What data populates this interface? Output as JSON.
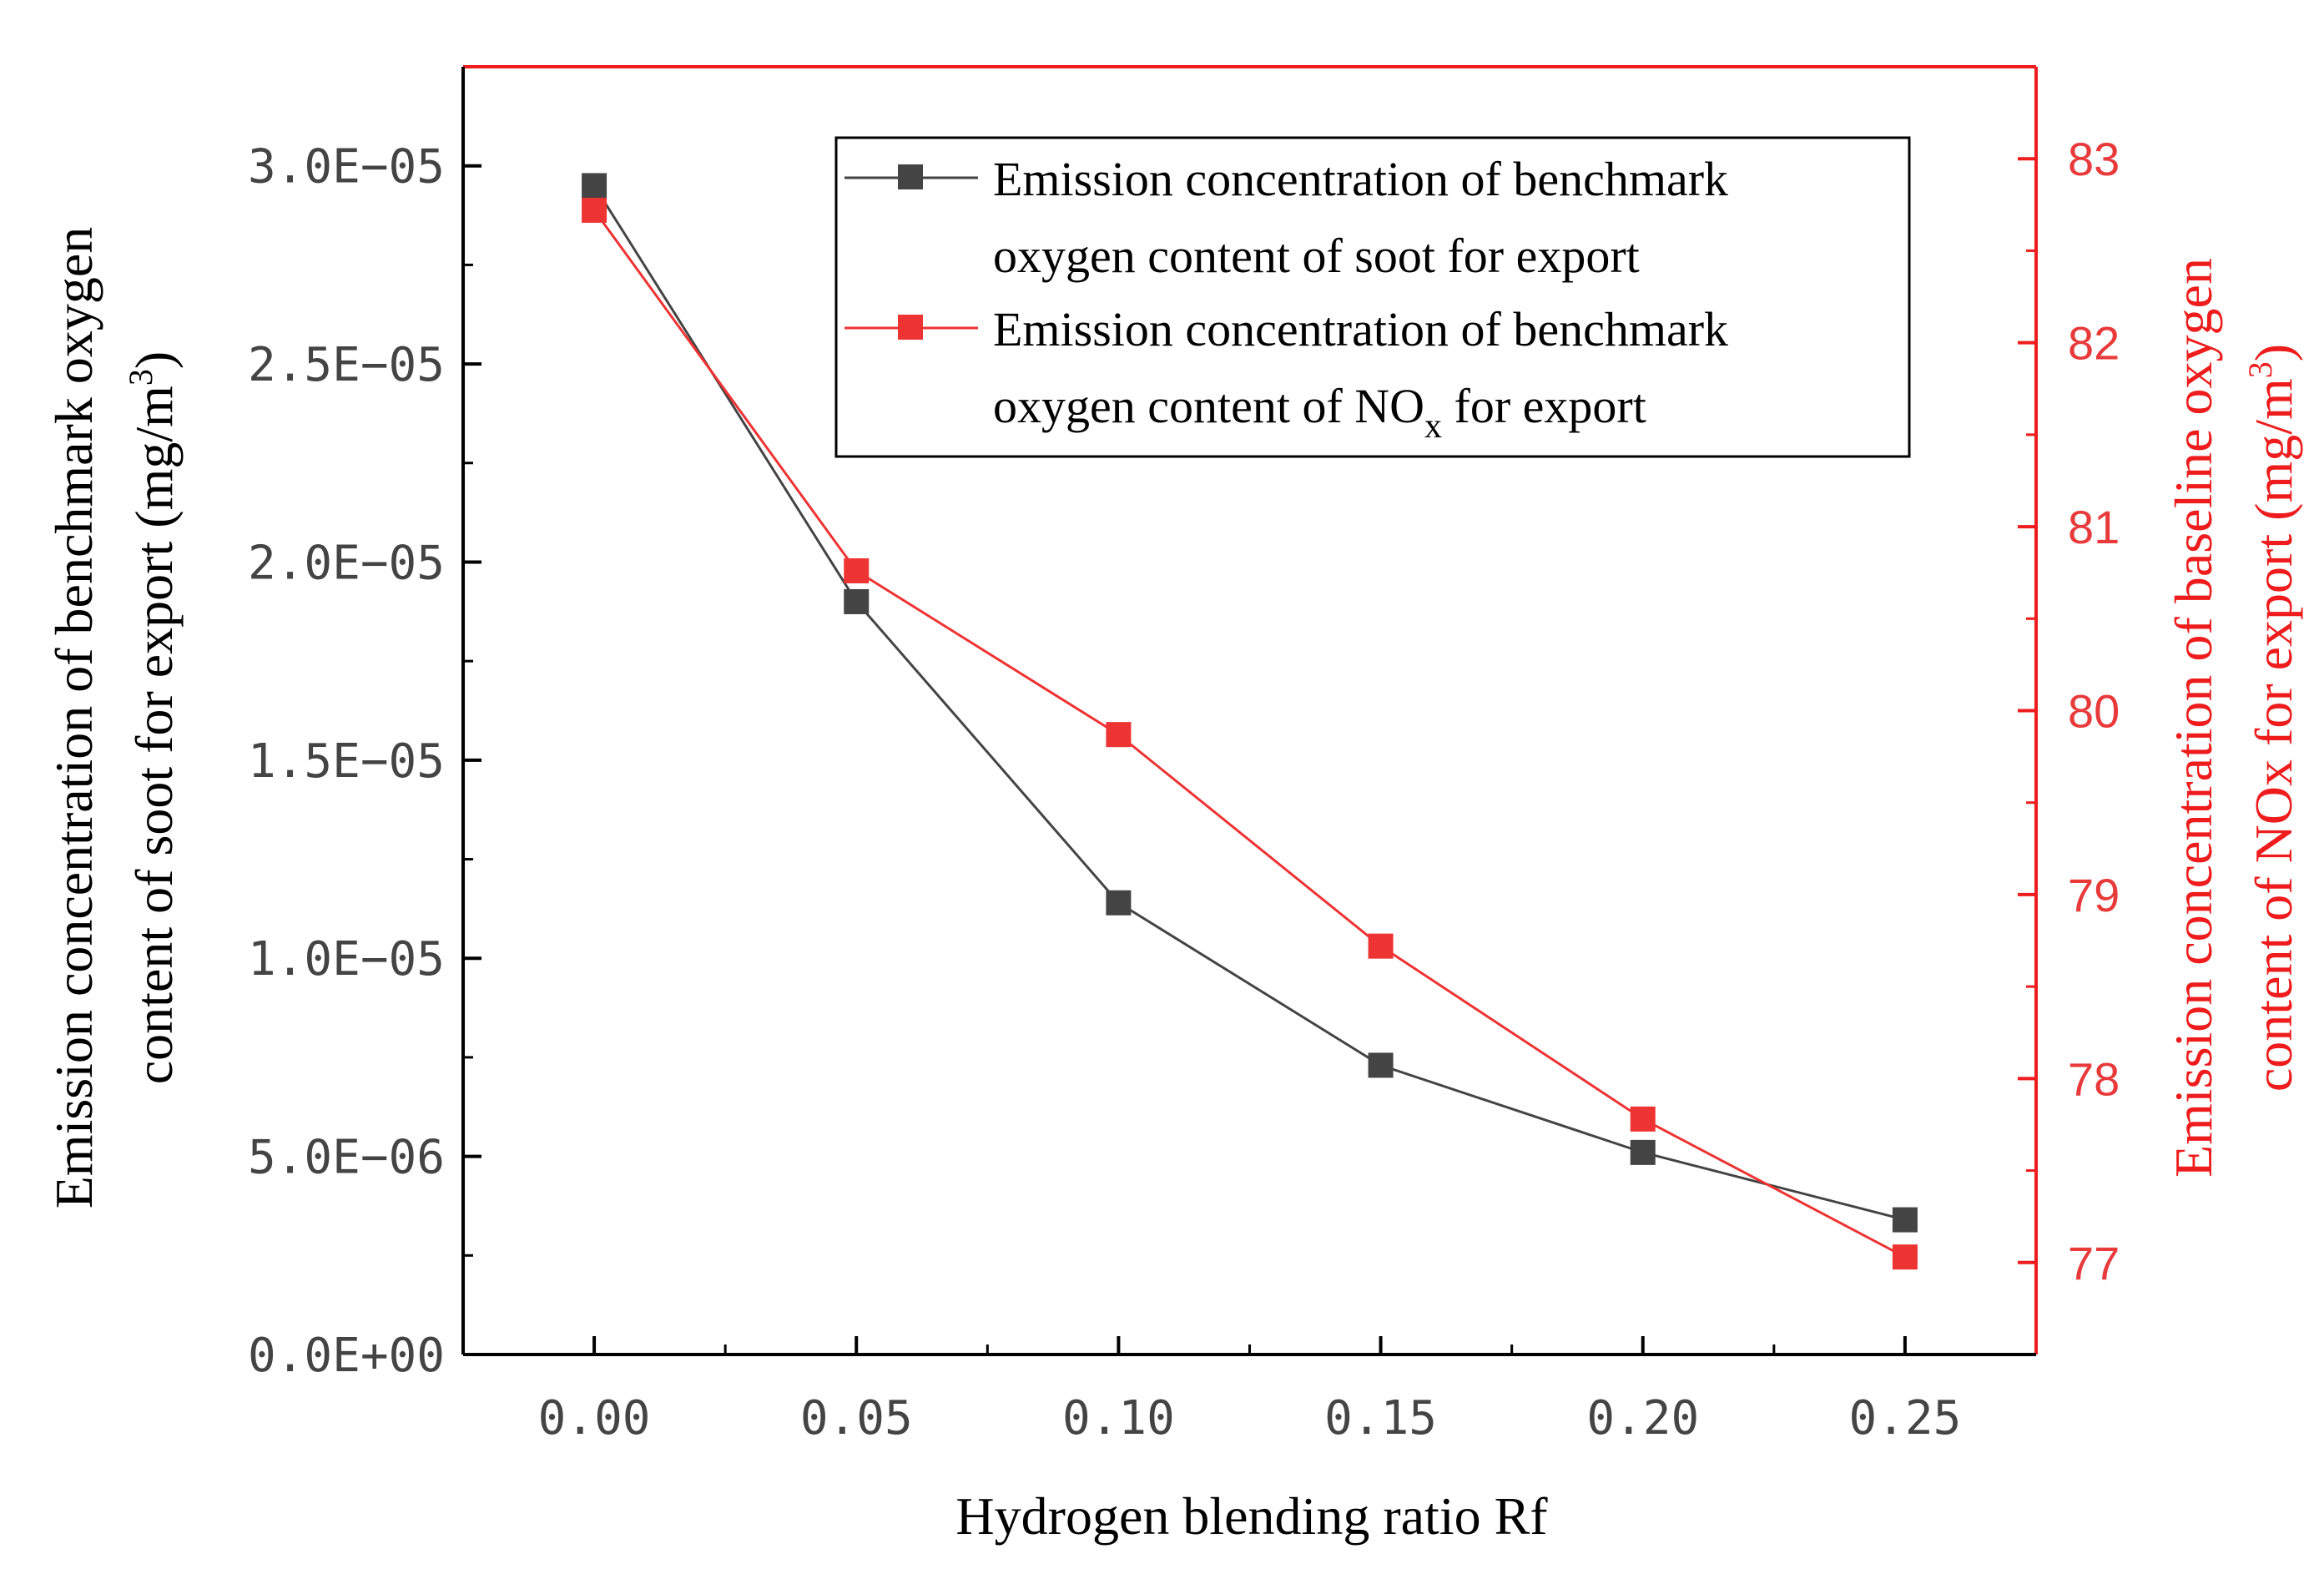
{
  "chart_data": {
    "type": "line",
    "x": [
      0.0,
      0.05,
      0.1,
      0.15,
      0.2,
      0.25
    ],
    "xtick_labels": [
      "0.00",
      "0.05",
      "0.10",
      "0.15",
      "0.20",
      "0.25"
    ],
    "xlabel": "Hydrogen blending ratio Rf",
    "xlim": [
      -0.025,
      0.275
    ],
    "left_axis": {
      "label_line1": "Emission concentration of benchmark oxygen",
      "label_line2_main": "content of soot for export (mg/m",
      "label_line2_sup": "3",
      "label_line2_end": ")",
      "ylim": [
        0,
        3.25e-05
      ],
      "ticks": [
        0,
        5e-06,
        1e-05,
        1.5e-05,
        2e-05,
        2.5e-05,
        3e-05
      ],
      "tick_labels": [
        "0.0E+00",
        "5.0E−06",
        "1.0E−05",
        "1.5E−05",
        "2.0E−05",
        "2.5E−05",
        "3.0E−05"
      ]
    },
    "right_axis": {
      "label_line1": "Emission concentration of baseline oxygen",
      "label_line2_main": "content of NOx for export (mg/m",
      "label_line2_sup": "3",
      "label_line2_end": ")",
      "ylim": [
        76.5,
        83.5
      ],
      "ticks": [
        77,
        78,
        79,
        80,
        81,
        82,
        83
      ],
      "tick_labels": [
        "77",
        "78",
        "79",
        "80",
        "81",
        "82",
        "83"
      ]
    },
    "series": [
      {
        "name_line1": "Emission concentration of benchmark",
        "name_line2": "oxygen content of soot for export",
        "axis": "left",
        "color": "#444444",
        "values": [
          2.95e-05,
          1.9e-05,
          1.14e-05,
          7.3e-06,
          5.1e-06,
          3.4e-06
        ]
      },
      {
        "name_line1": "Emission concentration of benchmark",
        "name_line2_main": "oxygen content of NO",
        "name_line2_sub": "x",
        "name_line2_end": " for export",
        "axis": "right",
        "color": "#ee3333",
        "values": [
          82.72,
          80.76,
          79.87,
          78.72,
          77.78,
          77.03
        ]
      }
    ],
    "legend_position": "top-right",
    "frame_colors": {
      "left": "#000000",
      "right": "#ee1c1c"
    }
  }
}
